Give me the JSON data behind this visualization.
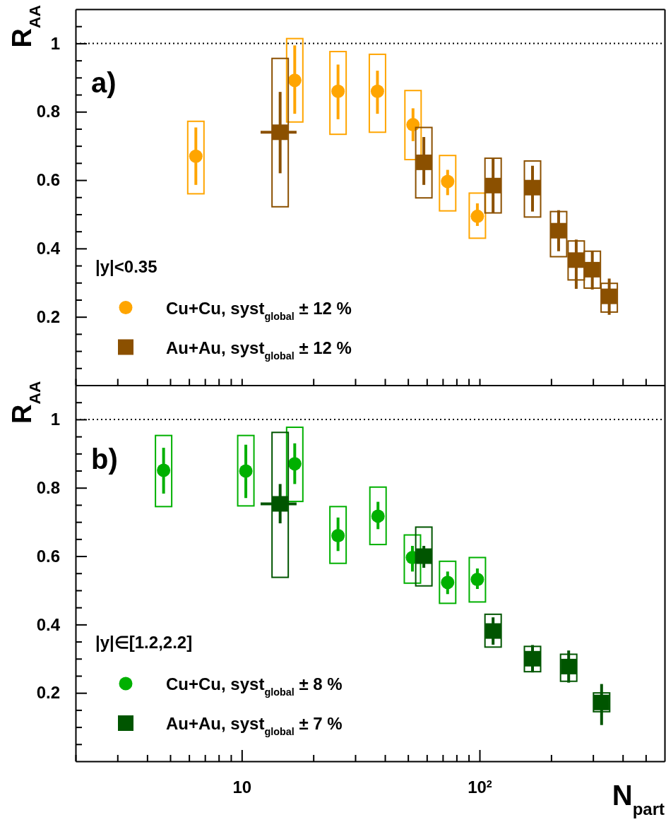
{
  "chart_data": [
    {
      "type": "scatter",
      "ylabel": "R$_{AA}$",
      "annotations": [
        "a)",
        "|y|<0.35"
      ],
      "log": "x",
      "legend": "bottom left",
      "tick_labels": "y",
      "xlim": [
        2,
        600
      ],
      "ylim": [
        0,
        1.1
      ],
      "xticks": [
        {
          "value": 2,
          "label": null
        },
        {
          "value": 3,
          "label": null
        },
        {
          "value": 4,
          "label": null
        },
        {
          "value": 5,
          "label": null
        },
        {
          "value": 6,
          "label": null
        },
        {
          "value": 7,
          "label": null
        },
        {
          "value": 8,
          "label": null
        },
        {
          "value": 9,
          "label": null
        },
        {
          "value": 10,
          "label": null
        },
        {
          "value": 20,
          "label": null
        },
        {
          "value": 30,
          "label": null
        },
        {
          "value": 40,
          "label": null
        },
        {
          "value": 50,
          "label": null
        },
        {
          "value": 60,
          "label": null
        },
        {
          "value": 70,
          "label": null
        },
        {
          "value": 80,
          "label": null
        },
        {
          "value": 90,
          "label": null
        },
        {
          "value": 100,
          "label": null
        },
        {
          "value": 200,
          "label": null
        },
        {
          "value": 300,
          "label": null
        },
        {
          "value": 400,
          "label": null
        },
        {
          "value": 500,
          "label": null
        }
      ],
      "yticks": [
        {
          "value": 0.05,
          "label": null
        },
        {
          "value": 0.1,
          "label": null
        },
        {
          "value": 0.15,
          "label": null
        },
        0.2,
        {
          "value": 0.25,
          "label": null
        },
        {
          "value": 0.3,
          "label": null
        },
        {
          "value": 0.35,
          "label": null
        },
        0.4,
        {
          "value": 0.45,
          "label": null
        },
        {
          "value": 0.5,
          "label": null
        },
        {
          "value": 0.55,
          "label": null
        },
        0.6,
        {
          "value": 0.65,
          "label": null
        },
        {
          "value": 0.7,
          "label": null
        },
        {
          "value": 0.75,
          "label": null
        },
        0.8,
        {
          "value": 0.85,
          "label": null
        },
        {
          "value": 0.9,
          "label": null
        },
        {
          "value": 0.95,
          "label": null
        },
        1,
        {
          "value": 1.05,
          "label": null
        }
      ],
      "ref_lines": [
        {
          "axis": "y",
          "value": 1,
          "color": "#000000",
          "line_style": "dotted"
        }
      ],
      "series": [
        {
          "name": "Cu+Cu, syst$_{global}$ ± 12 %",
          "color": "#ffa500",
          "marker": "circle",
          "x": [
            6.41,
            16.7,
            25.4,
            37.2,
            52.5,
            73.4,
            97.9
          ],
          "values": [
            0.67,
            0.892,
            0.86,
            0.86,
            0.762,
            0.596,
            0.494
          ],
          "errors": [
            [
              0.586,
              0.754
            ],
            [
              0.794,
              0.994
            ],
            [
              0.778,
              0.938
            ],
            [
              0.794,
              0.92
            ],
            [
              0.714,
              0.81
            ],
            [
              0.556,
              0.63
            ],
            [
              0.466,
              0.532
            ]
          ]
        },
        {
          "type": "bar",
          "color": "#ffa500",
          "x": [
            6.41,
            16.7,
            25.4,
            37.2,
            52.5,
            73.4,
            97.9
          ],
          "base": [
            0.56,
            0.77,
            0.734,
            0.74,
            0.66,
            0.51,
            0.43
          ],
          "values": [
            0.212,
            0.244,
            0.242,
            0.228,
            0.202,
            0.162,
            0.132
          ]
        },
        {
          "name": "Au+Au, syst$_{global}$ ± 12 %",
          "color": "#8b5000",
          "marker": "square",
          "x": [
            14.5,
            58.3,
            114,
            167,
            215,
            255,
            298,
            351
          ],
          "values": [
            0.74,
            0.652,
            0.584,
            0.578,
            0.452,
            0.366,
            0.338,
            0.26
          ],
          "errors": [
            [
              0.62,
              0.858
            ],
            [
              0.586,
              0.726
            ],
            [
              0.504,
              0.662
            ],
            [
              0.508,
              0.642
            ],
            [
              0.392,
              0.512
            ],
            [
              0.282,
              0.426
            ],
            [
              0.28,
              0.392
            ],
            [
              0.206,
              0.312
            ]
          ],
          "xerrors": [
            [
              12.0,
              17.0
            ],
            null,
            null,
            null,
            null,
            null,
            null,
            null
          ]
        },
        {
          "type": "bar",
          "color": "#8b5000",
          "x": [
            14.5,
            58.3,
            114,
            167,
            215,
            255,
            298,
            351
          ],
          "base": [
            0.522,
            0.548,
            0.504,
            0.492,
            0.376,
            0.308,
            0.284,
            0.214
          ],
          "values": [
            0.434,
            0.206,
            0.16,
            0.164,
            0.132,
            0.114,
            0.108,
            0.084
          ]
        }
      ]
    },
    {
      "type": "scatter",
      "ylabel": "R$_{AA}$",
      "xlabel": "N$_{part}$",
      "annotations": [
        "b)",
        "|y|∈[1.2,2.2]"
      ],
      "log": "x",
      "legend": "bottom left",
      "xlim": [
        2,
        600
      ],
      "ylim": [
        0,
        1.1
      ],
      "xticks": [
        {
          "value": 2,
          "label": null
        },
        {
          "value": 3,
          "label": null
        },
        {
          "value": 4,
          "label": null
        },
        {
          "value": 5,
          "label": null
        },
        {
          "value": 6,
          "label": null
        },
        {
          "value": 7,
          "label": null
        },
        {
          "value": 8,
          "label": null
        },
        {
          "value": 9,
          "label": null
        },
        10,
        {
          "value": 20,
          "label": null
        },
        {
          "value": 30,
          "label": null
        },
        {
          "value": 40,
          "label": null
        },
        {
          "value": 50,
          "label": null
        },
        {
          "value": 60,
          "label": null
        },
        {
          "value": 70,
          "label": null
        },
        {
          "value": 80,
          "label": null
        },
        {
          "value": 90,
          "label": null
        },
        {
          "value": 100,
          "label": "10$^{2}$"
        },
        {
          "value": 200,
          "label": null
        },
        {
          "value": 300,
          "label": null
        },
        {
          "value": 400,
          "label": null
        },
        {
          "value": 500,
          "label": null
        }
      ],
      "yticks": [
        {
          "value": 0.05,
          "label": null
        },
        {
          "value": 0.1,
          "label": null
        },
        {
          "value": 0.15,
          "label": null
        },
        0.2,
        {
          "value": 0.25,
          "label": null
        },
        {
          "value": 0.3,
          "label": null
        },
        {
          "value": 0.35,
          "label": null
        },
        0.4,
        {
          "value": 0.45,
          "label": null
        },
        {
          "value": 0.5,
          "label": null
        },
        {
          "value": 0.55,
          "label": null
        },
        0.6,
        {
          "value": 0.65,
          "label": null
        },
        {
          "value": 0.7,
          "label": null
        },
        {
          "value": 0.75,
          "label": null
        },
        0.8,
        {
          "value": 0.85,
          "label": null
        },
        {
          "value": 0.9,
          "label": null
        },
        {
          "value": 0.95,
          "label": null
        },
        1,
        {
          "value": 1.05,
          "label": null
        }
      ],
      "ref_lines": [
        {
          "axis": "y",
          "value": 1,
          "color": "#000000",
          "line_style": "dotted"
        }
      ],
      "series": [
        {
          "name": "Cu+Cu, syst$_{global}$ ± 8 %",
          "color": "#00b000",
          "marker": "circle",
          "x": [
            4.69,
            10.4,
            16.7,
            25.4,
            37.4,
            52.2,
            73.4,
            97.9
          ],
          "values": [
            0.851,
            0.849,
            0.87,
            0.66,
            0.717,
            0.596,
            0.523,
            0.532
          ],
          "errors": [
            [
              0.783,
              0.917
            ],
            [
              0.77,
              0.926
            ],
            [
              0.811,
              0.93
            ],
            [
              0.615,
              0.713
            ],
            [
              0.679,
              0.759
            ],
            [
              0.555,
              0.63
            ],
            [
              0.489,
              0.555
            ],
            [
              0.504,
              0.564
            ]
          ]
        },
        {
          "type": "bar",
          "color": "#00b000",
          "x": [
            4.69,
            10.4,
            16.7,
            25.4,
            37.4,
            52.2,
            73.4,
            97.9
          ],
          "base": [
            0.745,
            0.747,
            0.76,
            0.579,
            0.634,
            0.521,
            0.462,
            0.466
          ],
          "values": [
            0.208,
            0.206,
            0.217,
            0.166,
            0.168,
            0.141,
            0.123,
            0.13
          ]
        },
        {
          "name": "Au+Au, syst$_{global}$ ± 7 %",
          "color": "#005500",
          "marker": "square",
          "x": [
            14.5,
            58.3,
            114,
            167,
            237,
            326
          ],
          "values": [
            0.753,
            0.6,
            0.381,
            0.3,
            0.277,
            0.172
          ],
          "errors": [
            [
              0.696,
              0.811
            ],
            [
              0.566,
              0.63
            ],
            [
              0.341,
              0.421
            ],
            [
              0.26,
              0.34
            ],
            [
              0.23,
              0.324
            ],
            [
              0.106,
              0.226
            ]
          ],
          "xerrors": [
            [
              12.0,
              17.0
            ],
            null,
            null,
            null,
            null,
            null
          ]
        },
        {
          "type": "bar",
          "color": "#005500",
          "x": [
            14.5,
            58.3,
            114,
            167,
            237,
            326
          ],
          "base": [
            0.538,
            0.513,
            0.334,
            0.262,
            0.234,
            0.145
          ],
          "values": [
            0.424,
            0.172,
            0.096,
            0.074,
            0.079,
            0.055
          ]
        }
      ]
    }
  ]
}
